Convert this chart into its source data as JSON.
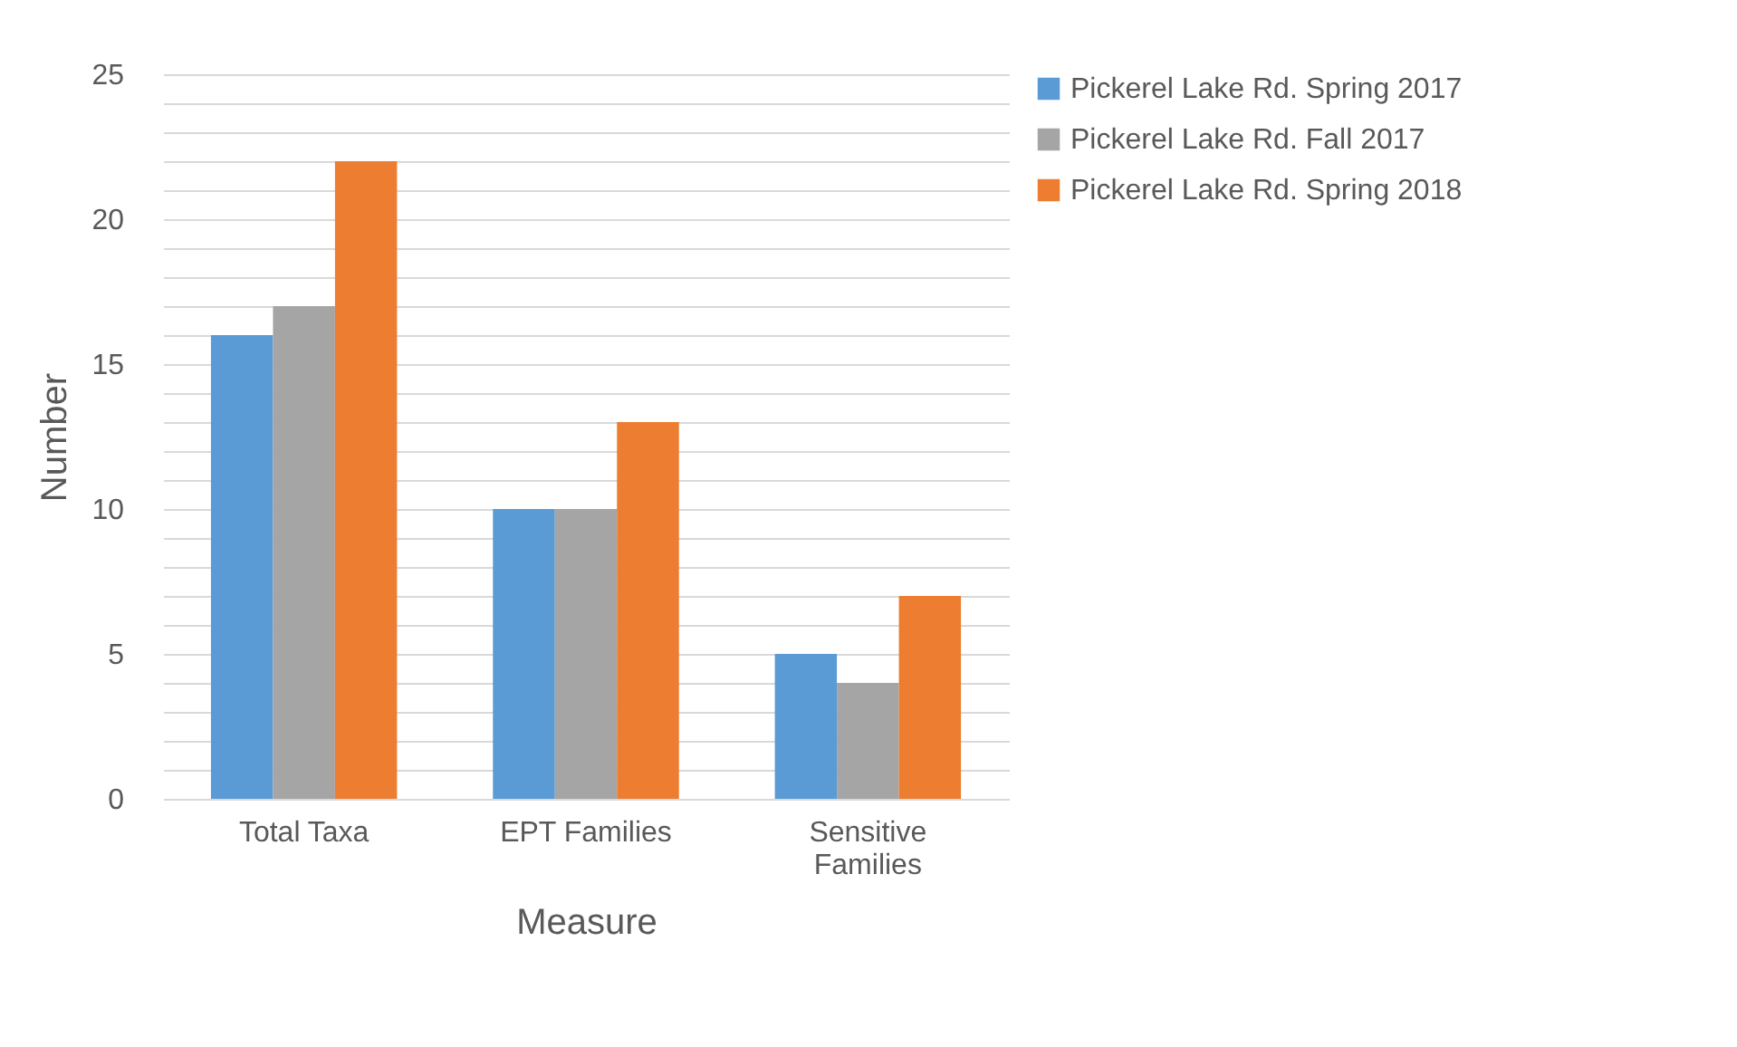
{
  "chart_data": {
    "type": "bar",
    "xlabel": "Measure",
    "ylabel": "Number",
    "categories": [
      "Total Taxa",
      "EPT Families",
      "Sensitive Families"
    ],
    "series": [
      {
        "name": "Pickerel Lake Rd. Spring 2017",
        "color": "#5b9bd5",
        "values": [
          16,
          10,
          5
        ]
      },
      {
        "name": "Pickerel Lake Rd. Fall 2017",
        "color": "#a5a5a5",
        "values": [
          17,
          10,
          4
        ]
      },
      {
        "name": "Pickerel Lake Rd. Spring 2018",
        "color": "#ed7d31",
        "values": [
          22,
          13,
          7
        ]
      }
    ],
    "ylim": [
      0,
      25
    ],
    "yticks": [
      0,
      {
        "value": 1,
        "label": null
      },
      {
        "value": 2,
        "label": null
      },
      {
        "value": 3,
        "label": null
      },
      {
        "value": 4,
        "label": null
      },
      5,
      {
        "value": 6,
        "label": null
      },
      {
        "value": 7,
        "label": null
      },
      {
        "value": 8,
        "label": null
      },
      {
        "value": 9,
        "label": null
      },
      10,
      {
        "value": 11,
        "label": null
      },
      {
        "value": 12,
        "label": null
      },
      {
        "value": 13,
        "label": null
      },
      {
        "value": 14,
        "label": null
      },
      15,
      {
        "value": 16,
        "label": null
      },
      {
        "value": 17,
        "label": null
      },
      {
        "value": 18,
        "label": null
      },
      {
        "value": 19,
        "label": null
      },
      20,
      {
        "value": 21,
        "label": null
      },
      {
        "value": 22,
        "label": null
      },
      {
        "value": 23,
        "label": null
      },
      {
        "value": 24,
        "label": null
      },
      25
    ],
    "grid": "y",
    "legend": "right"
  }
}
